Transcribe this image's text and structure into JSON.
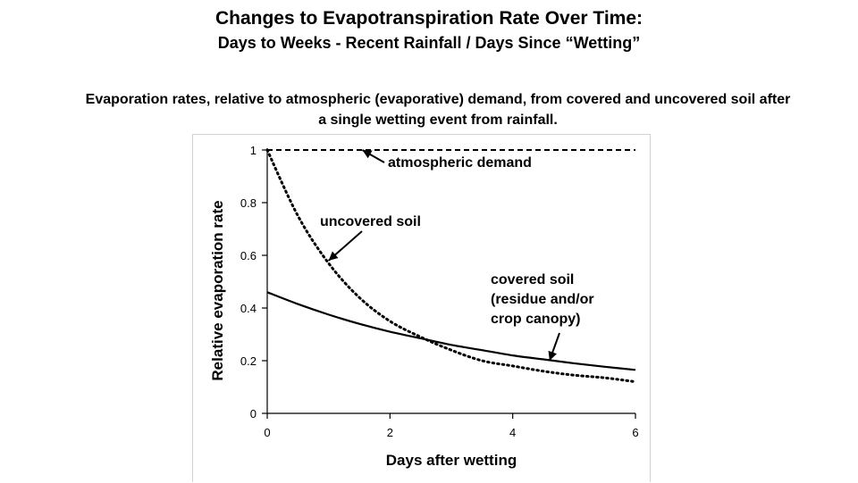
{
  "slide": {
    "title": "Changes to Evapotranspiration Rate Over Time:",
    "subtitle": "Days to Weeks - Recent Rainfall / Days Since “Wetting”",
    "caption_line1": "Evaporation rates, relative to atmospheric (evaporative) demand, from covered and uncovered soil after",
    "caption_line2": "a single wetting event from rainfall."
  },
  "chart_data": {
    "type": "line",
    "xlabel": "Days after wetting",
    "ylabel": "Relative evaporation rate",
    "xlim": [
      0,
      6
    ],
    "ylim": [
      0,
      1
    ],
    "x_ticks": [
      "0",
      "2",
      "4",
      "6"
    ],
    "y_ticks": [
      "0",
      "0.2",
      "0.4",
      "0.6",
      "0.8",
      "1"
    ],
    "grid": false,
    "legend": "none",
    "x": [
      0,
      0.5,
      1,
      1.5,
      2,
      2.5,
      3,
      3.5,
      4,
      4.5,
      5,
      5.5,
      6
    ],
    "series": [
      {
        "style": "dashed",
        "values": [
          1,
          1,
          1,
          1,
          1,
          1,
          1,
          1,
          1,
          1,
          1,
          1,
          1
        ]
      },
      {
        "style": "dotted",
        "values": [
          1.0,
          0.75,
          0.57,
          0.44,
          0.35,
          0.29,
          0.24,
          0.2,
          0.18,
          0.16,
          0.145,
          0.135,
          0.12
        ]
      },
      {
        "style": "solid",
        "values": [
          0.46,
          0.415,
          0.375,
          0.34,
          0.31,
          0.285,
          0.26,
          0.24,
          0.22,
          0.205,
          0.19,
          0.177,
          0.165
        ]
      }
    ],
    "annotations": [
      {
        "lines": [
          "atmospheric demand"
        ],
        "arrow_to": [
          1.55,
          1.0
        ]
      },
      {
        "lines": [
          "uncovered soil"
        ],
        "arrow_to": [
          1.0,
          0.58
        ]
      },
      {
        "lines": [
          "covered soil",
          "(residue and/or",
          "crop canopy)"
        ],
        "arrow_to": [
          4.6,
          0.2
        ]
      }
    ]
  }
}
